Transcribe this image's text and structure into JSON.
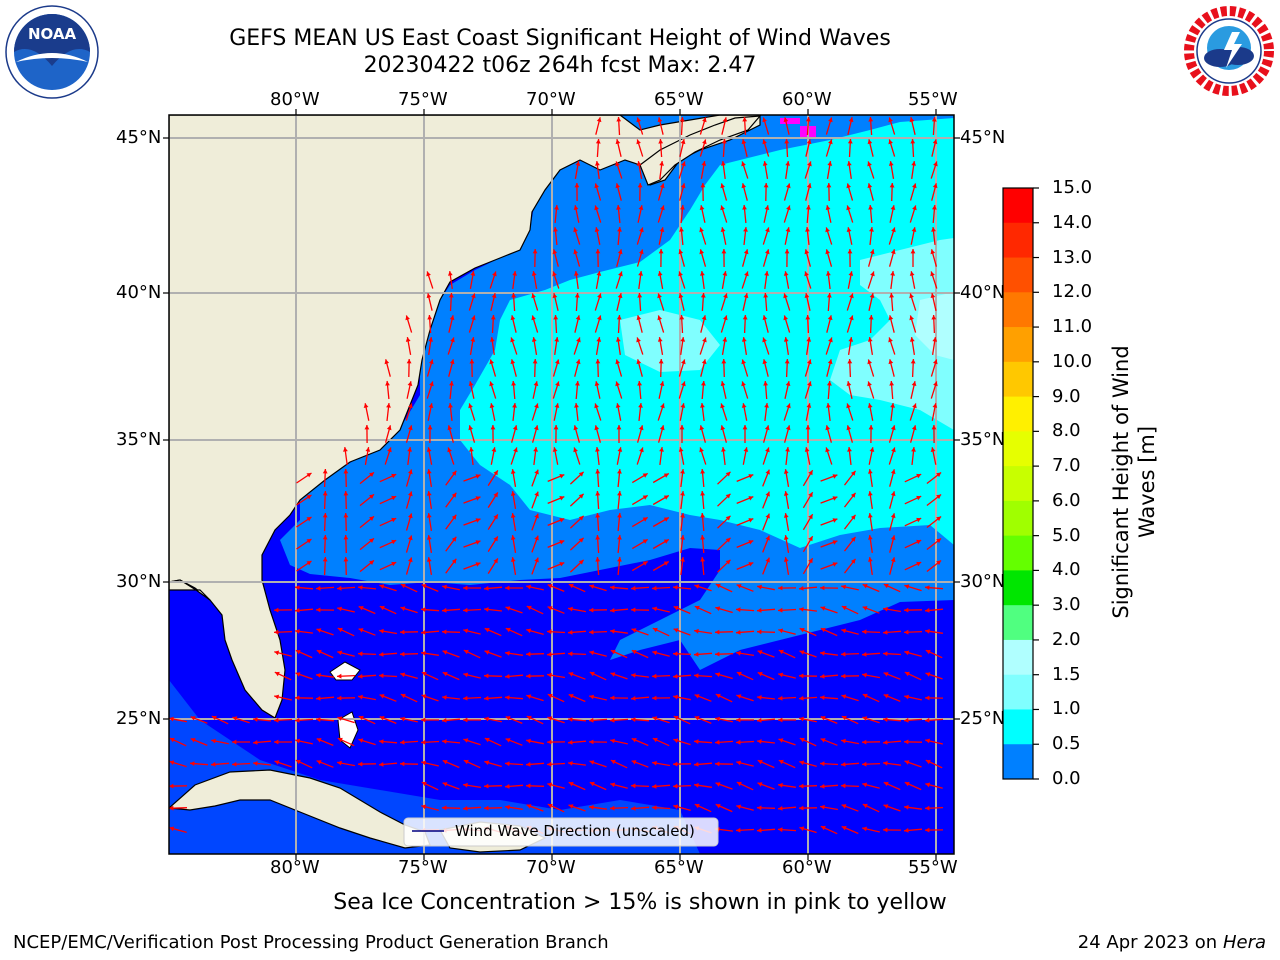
{
  "header": {
    "title_line1": "GEFS MEAN US East Coast Significant Height of Wind Waves",
    "title_line2": "20230422 t06z 264h fcst   Max: 2.47"
  },
  "logos": {
    "left": {
      "icon": "noaa-logo-icon",
      "text": "NOAA",
      "ring_text": "NATIONAL OCEANIC AND ATMOSPHERIC ADMINISTRATION · U.S. DEPARTMENT OF COMMERCE"
    },
    "right": {
      "icon": "nws-logo-icon",
      "ring_text": "NATIONAL WEATHER SERVICE"
    }
  },
  "map": {
    "lon_labels": [
      "80°W",
      "75°W",
      "70°W",
      "65°W",
      "60°W",
      "55°W"
    ],
    "lat_labels": [
      "45°N",
      "40°N",
      "35°N",
      "30°N",
      "25°N"
    ],
    "legend_label": "Wind Wave Direction (unscaled)",
    "colors": {
      "land": "#efedd9",
      "ocean_low": "#0000ff",
      "ocean_mid": "#0080ff",
      "ocean_high": "#00ffff",
      "ocean_top": "#80ffff",
      "arrow": "#ff0000",
      "grid": "#b0b0b0",
      "sea_ice": "#ff00ff"
    }
  },
  "colorbar": {
    "title_line1": "Significant Height of Wind",
    "title_line2": "Waves [m]",
    "ticks": [
      "15.0",
      "14.0",
      "13.0",
      "12.0",
      "11.0",
      "10.0",
      "9.0",
      "8.0",
      "7.0",
      "6.0",
      "5.0",
      "4.0",
      "3.0",
      "2.0",
      "1.5",
      "1.0",
      "0.5",
      "0.0"
    ],
    "colors": [
      "#ff0000",
      "#ff2800",
      "#ff5000",
      "#ff7800",
      "#ffa000",
      "#ffc800",
      "#fff000",
      "#e6ff00",
      "#c8ff00",
      "#a0ff00",
      "#64ff00",
      "#00e600",
      "#50ff80",
      "#b0ffff",
      "#80ffff",
      "#00ffff",
      "#0080ff",
      "#0000ff"
    ]
  },
  "footer": {
    "sea_ice_note": "Sea Ice Concentration > 15% is shown in pink to yellow",
    "branch": "NCEP/EMC/Verification Post Processing Product Generation Branch",
    "date": "24 Apr 2023 on ",
    "host": "Hera"
  }
}
